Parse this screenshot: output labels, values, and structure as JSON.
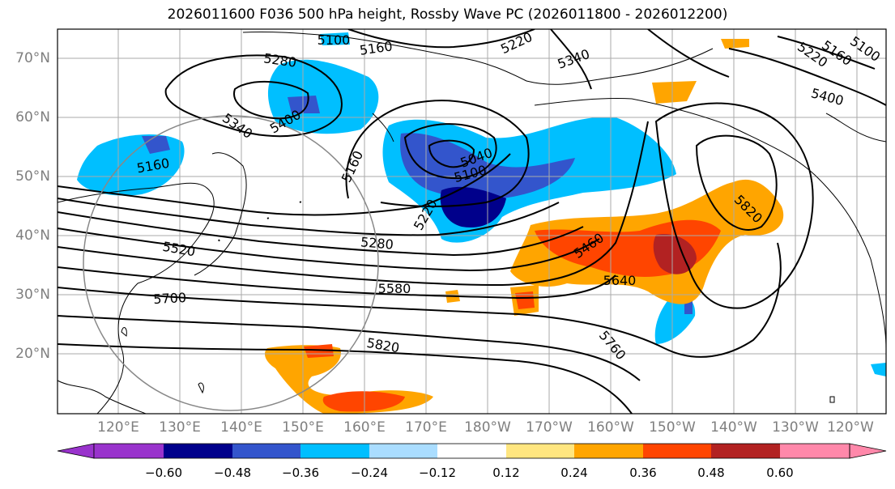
{
  "title": "2026011600 F036 500 hPa height, Rossby Wave PC (2026011800 - 2026012200)",
  "lat_labels": [
    "70°N",
    "60°N",
    "50°N",
    "40°N",
    "30°N",
    "20°N"
  ],
  "lon_labels": [
    "120°E",
    "130°E",
    "140°E",
    "150°E",
    "160°E",
    "170°E",
    "180°W",
    "170°W",
    "160°W",
    "150°W",
    "140°W",
    "130°W",
    "120°W"
  ],
  "contour_labels": [
    "5100",
    "5160",
    "5220",
    "5280",
    "5340",
    "5400",
    "5160",
    "5160",
    "5040",
    "5100",
    "5220",
    "5280",
    "5520",
    "5580",
    "5700",
    "5820",
    "5340",
    "5460",
    "5640",
    "5760",
    "5820",
    "5400",
    "5220",
    "5160",
    "5100"
  ],
  "colorbar": {
    "ticks": [
      "−0.60",
      "−0.48",
      "−0.36",
      "−0.24",
      "−0.12",
      "0.12",
      "0.24",
      "0.36",
      "0.48",
      "0.60"
    ],
    "colors": [
      "#9933cc",
      "#00008b",
      "#3355cc",
      "#00bfff",
      "#aaddff",
      "#ffffff",
      "#ffe680",
      "#ffa500",
      "#ff4500",
      "#b22222",
      "#ff88aa"
    ]
  },
  "shading_colors": {
    "blue_light": "#00bfff",
    "blue_mid": "#3355cc",
    "blue_dark": "#00008b",
    "orange_light": "#ffe680",
    "orange": "#ffa500",
    "red_orange": "#ff4500",
    "dark_red": "#b22222"
  }
}
